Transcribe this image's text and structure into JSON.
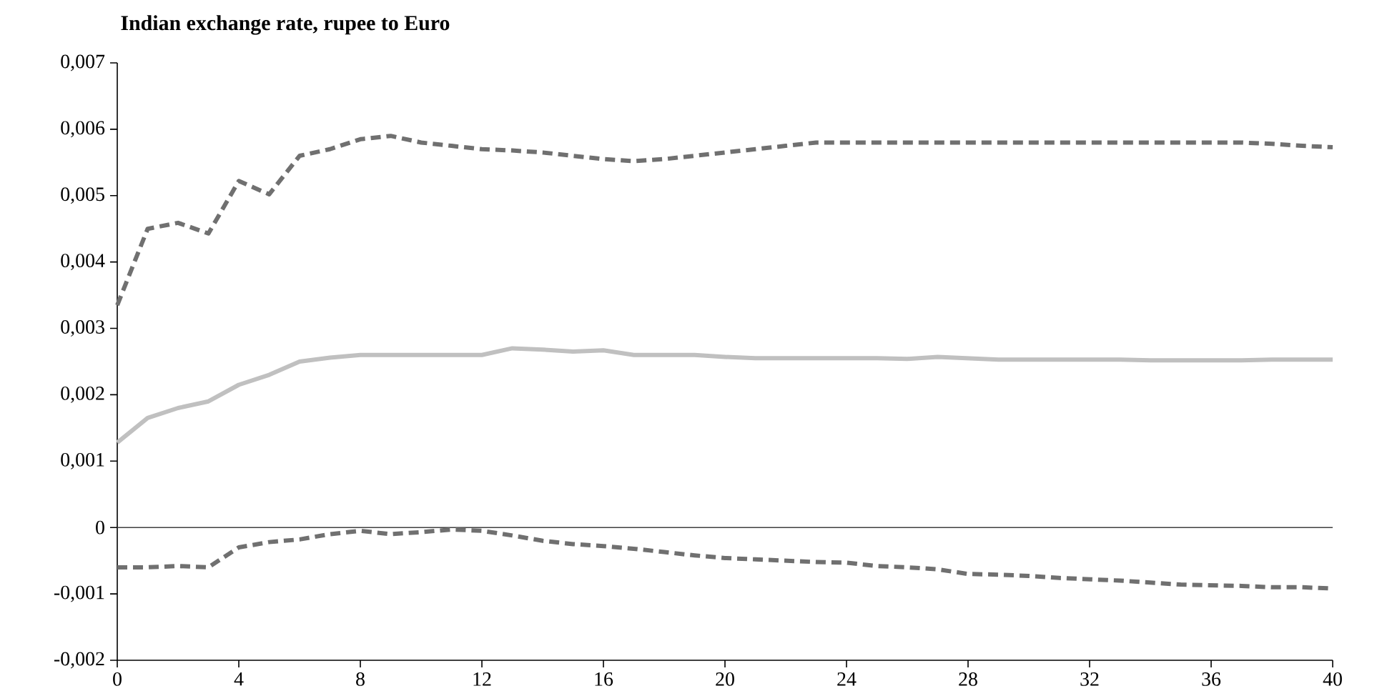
{
  "chart_data": {
    "type": "line",
    "title": "Indian exchange rate, rupee to Euro",
    "x": [
      0,
      1,
      2,
      3,
      4,
      5,
      6,
      7,
      8,
      9,
      10,
      11,
      12,
      13,
      14,
      15,
      16,
      17,
      18,
      19,
      20,
      21,
      22,
      23,
      24,
      25,
      26,
      27,
      28,
      29,
      30,
      31,
      32,
      33,
      34,
      35,
      36,
      37,
      38,
      39,
      40
    ],
    "series": [
      {
        "color": "#707070",
        "line_style": "dashed",
        "values": [
          0.00335,
          0.0045,
          0.00459,
          0.00443,
          0.00522,
          0.00502,
          0.0056,
          0.0057,
          0.00585,
          0.0059,
          0.0058,
          0.00575,
          0.0057,
          0.00568,
          0.00565,
          0.0056,
          0.00555,
          0.00552,
          0.00555,
          0.0056,
          0.00565,
          0.0057,
          0.00575,
          0.0058,
          0.0058,
          0.0058,
          0.0058,
          0.0058,
          0.0058,
          0.0058,
          0.0058,
          0.0058,
          0.0058,
          0.0058,
          0.0058,
          0.0058,
          0.0058,
          0.0058,
          0.00578,
          0.00575,
          0.00573
        ]
      },
      {
        "color": "#c0c0c0",
        "line_style": "solid",
        "values": [
          0.00128,
          0.00165,
          0.0018,
          0.0019,
          0.00215,
          0.0023,
          0.0025,
          0.00256,
          0.0026,
          0.0026,
          0.0026,
          0.0026,
          0.0026,
          0.0027,
          0.00268,
          0.00265,
          0.00267,
          0.0026,
          0.0026,
          0.0026,
          0.00257,
          0.00255,
          0.00255,
          0.00255,
          0.00255,
          0.00255,
          0.00254,
          0.00257,
          0.00255,
          0.00253,
          0.00253,
          0.00253,
          0.00253,
          0.00253,
          0.00252,
          0.00252,
          0.00252,
          0.00252,
          0.00253,
          0.00253,
          0.00253
        ]
      },
      {
        "color": "#707070",
        "line_style": "dashed",
        "values": [
          -0.0006,
          -0.0006,
          -0.00058,
          -0.0006,
          -0.0003,
          -0.00022,
          -0.00018,
          -0.0001,
          -5e-05,
          -0.0001,
          -7e-05,
          -3e-05,
          -5e-05,
          -0.00012,
          -0.0002,
          -0.00025,
          -0.00028,
          -0.00032,
          -0.00037,
          -0.00042,
          -0.00046,
          -0.00048,
          -0.0005,
          -0.00052,
          -0.00053,
          -0.00058,
          -0.0006,
          -0.00063,
          -0.0007,
          -0.00071,
          -0.00073,
          -0.00076,
          -0.00078,
          -0.0008,
          -0.00083,
          -0.00086,
          -0.00087,
          -0.00088,
          -0.0009,
          -0.0009,
          -0.00092
        ]
      }
    ],
    "xlim": [
      0,
      40
    ],
    "xticks": [
      0,
      4,
      8,
      12,
      16,
      20,
      24,
      28,
      32,
      36,
      40
    ],
    "ylim": [
      -0.002,
      0.007
    ],
    "yticks": [
      {
        "value": -0.002,
        "label": "-0,002"
      },
      {
        "value": -0.001,
        "label": "-0,001"
      },
      {
        "value": 0,
        "label": "0"
      },
      {
        "value": 0.001,
        "label": "0,001"
      },
      {
        "value": 0.002,
        "label": "0,002"
      },
      {
        "value": 0.003,
        "label": "0,003"
      },
      {
        "value": 0.004,
        "label": "0,004"
      },
      {
        "value": 0.005,
        "label": "0,005"
      },
      {
        "value": 0.006,
        "label": "0,006"
      },
      {
        "value": 0.007,
        "label": "0,007"
      }
    ],
    "ref_lines": [
      {
        "axis": "y",
        "value": 0,
        "color": "#404040"
      }
    ],
    "grid": false,
    "marker": "none"
  }
}
